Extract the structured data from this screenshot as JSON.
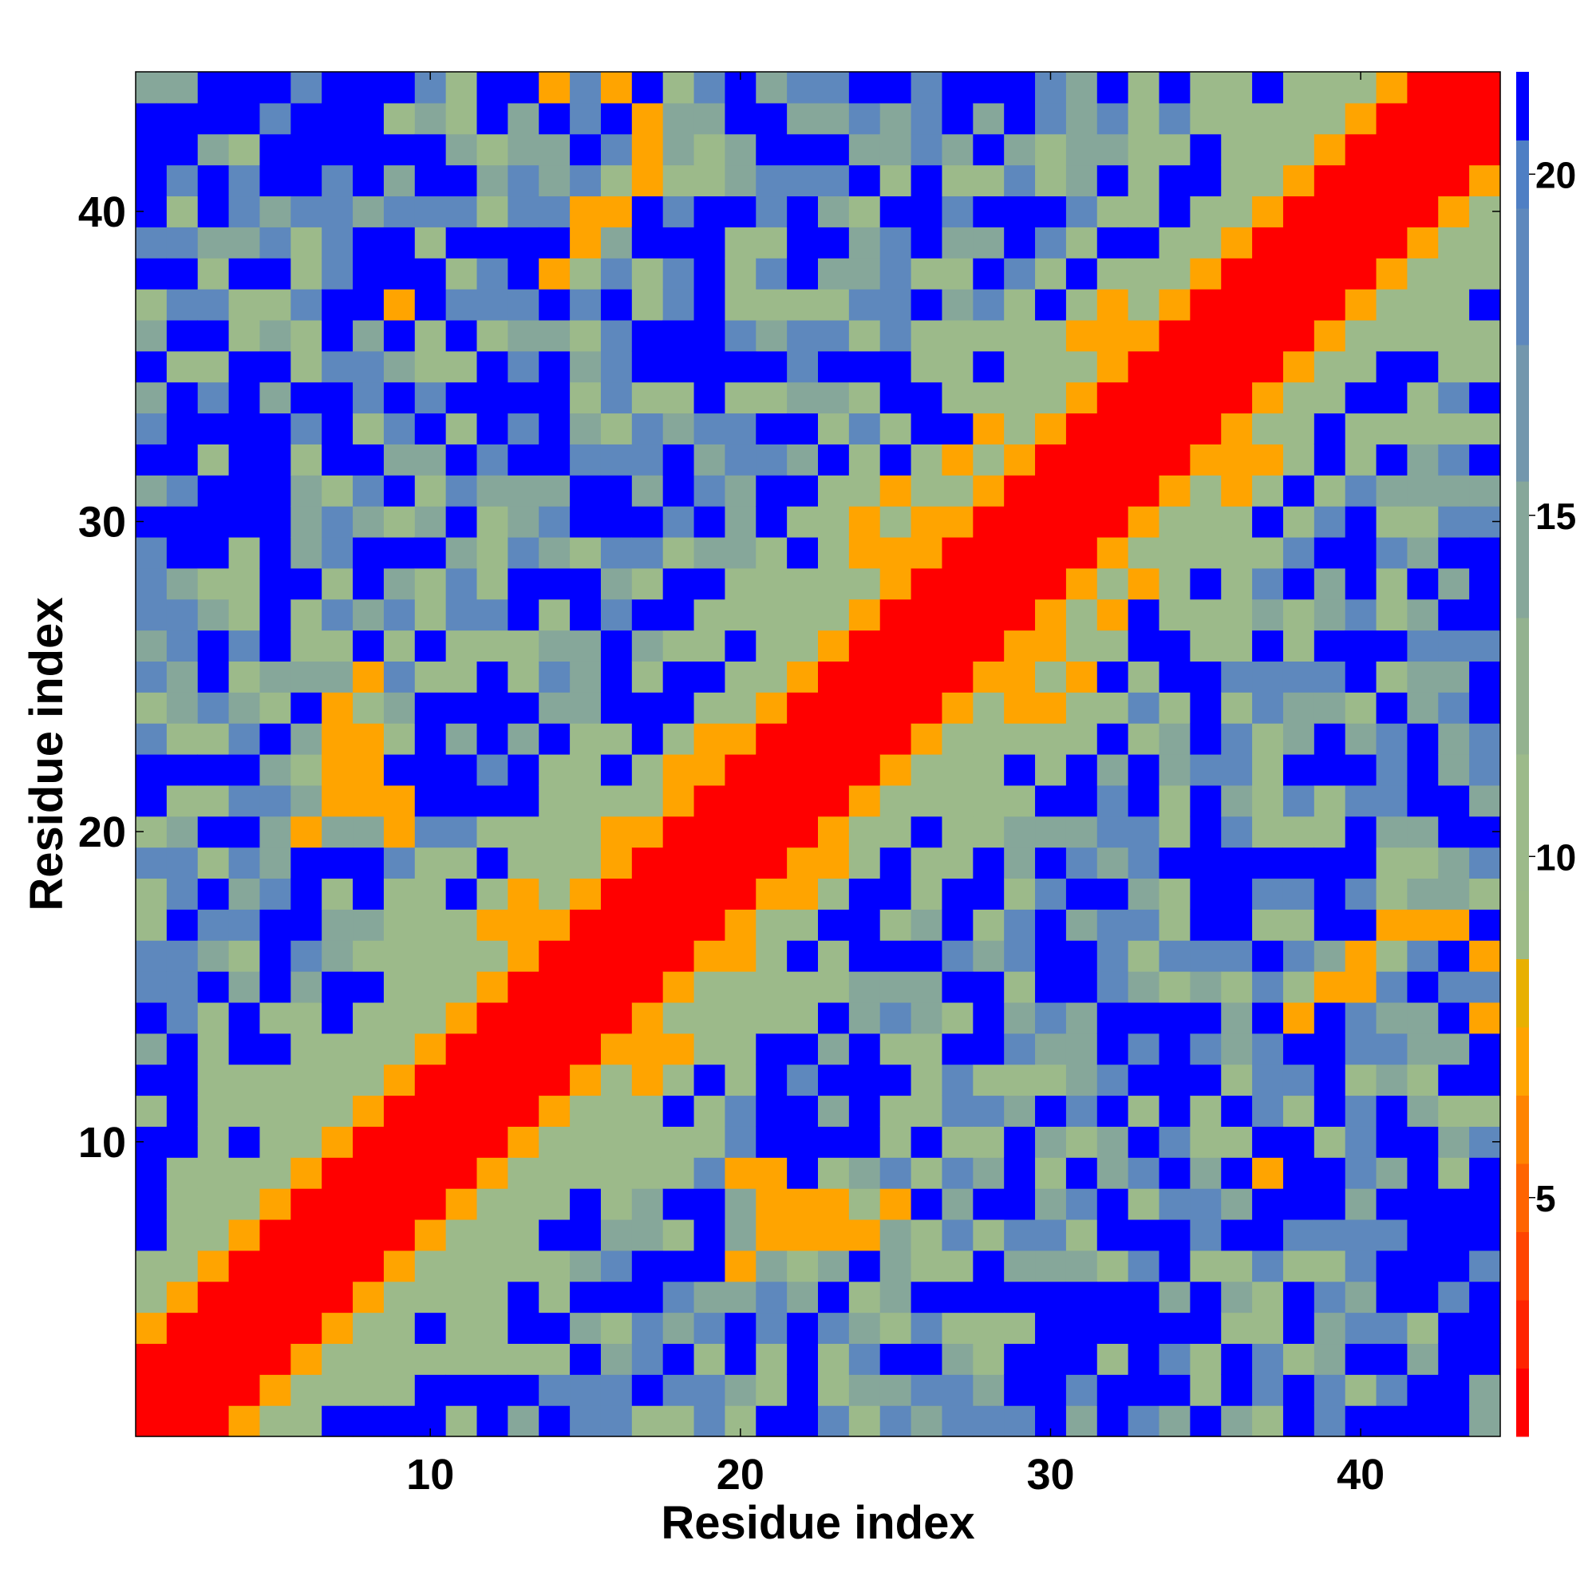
{
  "chart_data": {
    "type": "heatmap",
    "title": "",
    "xlabel": "Residue index",
    "ylabel": "Residue index",
    "n": 44,
    "xlim": [
      0.5,
      44.5
    ],
    "ylim": [
      0.5,
      44.5
    ],
    "x_ticks": [
      10,
      20,
      30,
      40
    ],
    "y_ticks": [
      10,
      20,
      30,
      40
    ],
    "x_tick_labels": [
      "10",
      "20",
      "30",
      "40"
    ],
    "y_tick_labels": [
      "10",
      "20",
      "30",
      "40"
    ],
    "colorbar": {
      "range": [
        1.5,
        21.5
      ],
      "ticks": [
        5,
        10,
        15,
        20
      ],
      "tick_labels": [
        "5",
        "10",
        "15",
        "20"
      ],
      "levels": [
        {
          "from": 1.5,
          "to": 2.5,
          "color": "#ff0000"
        },
        {
          "from": 2.5,
          "to": 3.5,
          "color": "#ff2400"
        },
        {
          "from": 3.5,
          "to": 4.5,
          "color": "#ff4400"
        },
        {
          "from": 4.5,
          "to": 5.5,
          "color": "#ff6400"
        },
        {
          "from": 5.5,
          "to": 6.5,
          "color": "#ff8400"
        },
        {
          "from": 6.5,
          "to": 7.5,
          "color": "#ffa400"
        },
        {
          "from": 7.5,
          "to": 8.5,
          "color": "#e8b000"
        },
        {
          "from": 8.5,
          "to": 9.5,
          "color": "#9dbb87"
        },
        {
          "from": 9.5,
          "to": 11.5,
          "color": "#9cba8a"
        },
        {
          "from": 11.5,
          "to": 13.5,
          "color": "#93b28f"
        },
        {
          "from": 13.5,
          "to": 15.5,
          "color": "#86a79a"
        },
        {
          "from": 15.5,
          "to": 17.5,
          "color": "#7397ad"
        },
        {
          "from": 17.5,
          "to": 19.5,
          "color": "#5e88bd"
        },
        {
          "from": 19.5,
          "to": 20.5,
          "color": "#4f7fc4"
        },
        {
          "from": 20.5,
          "to": 21.5,
          "color": "#0000ff"
        }
      ]
    },
    "value_note_unused": "",
    "band": {
      "contact_value": 2,
      "near_value": 7,
      "far_value": 21
    },
    "contact_pairs": [
      [
        1,
        2
      ],
      [
        1,
        3
      ],
      [
        2,
        3
      ],
      [
        2,
        4
      ],
      [
        3,
        4
      ],
      [
        3,
        5
      ],
      [
        4,
        5
      ],
      [
        4,
        6
      ],
      [
        5,
        6
      ],
      [
        5,
        7
      ],
      [
        6,
        7
      ],
      [
        6,
        8
      ],
      [
        7,
        8
      ],
      [
        7,
        9
      ],
      [
        8,
        9
      ],
      [
        8,
        10
      ],
      [
        9,
        10
      ],
      [
        9,
        11
      ],
      [
        10,
        11
      ],
      [
        10,
        12
      ],
      [
        11,
        12
      ],
      [
        11,
        13
      ],
      [
        12,
        13
      ],
      [
        12,
        14
      ],
      [
        13,
        14
      ],
      [
        13,
        15
      ],
      [
        14,
        15
      ],
      [
        14,
        16
      ],
      [
        15,
        16
      ],
      [
        15,
        17
      ],
      [
        16,
        17
      ],
      [
        16,
        18
      ],
      [
        17,
        18
      ],
      [
        17,
        19
      ],
      [
        18,
        19
      ],
      [
        18,
        20
      ],
      [
        19,
        20
      ],
      [
        19,
        21
      ],
      [
        20,
        21
      ],
      [
        20,
        22
      ],
      [
        21,
        22
      ],
      [
        21,
        23
      ],
      [
        22,
        23
      ],
      [
        22,
        24
      ],
      [
        23,
        24
      ],
      [
        23,
        25
      ],
      [
        24,
        25
      ],
      [
        24,
        26
      ],
      [
        25,
        26
      ],
      [
        25,
        27
      ],
      [
        26,
        27
      ],
      [
        26,
        28
      ],
      [
        27,
        28
      ],
      [
        27,
        29
      ],
      [
        28,
        29
      ],
      [
        28,
        30
      ],
      [
        29,
        30
      ],
      [
        29,
        31
      ],
      [
        30,
        31
      ],
      [
        30,
        32
      ],
      [
        31,
        32
      ],
      [
        31,
        33
      ],
      [
        32,
        33
      ],
      [
        32,
        34
      ],
      [
        33,
        34
      ],
      [
        33,
        35
      ],
      [
        34,
        35
      ],
      [
        34,
        36
      ],
      [
        35,
        36
      ],
      [
        35,
        37
      ],
      [
        36,
        37
      ],
      [
        36,
        38
      ],
      [
        37,
        38
      ],
      [
        37,
        39
      ],
      [
        38,
        39
      ],
      [
        38,
        40
      ],
      [
        39,
        40
      ],
      [
        39,
        41
      ],
      [
        40,
        41
      ],
      [
        40,
        42
      ],
      [
        41,
        42
      ],
      [
        41,
        43
      ],
      [
        42,
        43
      ],
      [
        42,
        44
      ],
      [
        43,
        44
      ]
    ],
    "near_pairs": [
      [
        1,
        4
      ],
      [
        2,
        5
      ],
      [
        3,
        6
      ],
      [
        4,
        7
      ],
      [
        5,
        8
      ],
      [
        6,
        9
      ],
      [
        7,
        10
      ],
      [
        8,
        11
      ],
      [
        9,
        12
      ],
      [
        10,
        13
      ],
      [
        11,
        14
      ],
      [
        12,
        15
      ],
      [
        13,
        16
      ],
      [
        14,
        17
      ],
      [
        15,
        18
      ],
      [
        16,
        19
      ],
      [
        17,
        20
      ],
      [
        18,
        21
      ],
      [
        19,
        22
      ],
      [
        20,
        23
      ],
      [
        21,
        24
      ],
      [
        22,
        25
      ],
      [
        23,
        26
      ],
      [
        24,
        27
      ],
      [
        25,
        28
      ],
      [
        26,
        29
      ],
      [
        27,
        30
      ],
      [
        28,
        31
      ],
      [
        29,
        32
      ],
      [
        30,
        33
      ],
      [
        31,
        34
      ],
      [
        32,
        35
      ],
      [
        33,
        36
      ],
      [
        34,
        37
      ],
      [
        35,
        38
      ],
      [
        36,
        39
      ],
      [
        37,
        40
      ],
      [
        38,
        41
      ],
      [
        39,
        42
      ],
      [
        40,
        43
      ],
      [
        41,
        44
      ],
      [
        7,
        22
      ],
      [
        8,
        23
      ],
      [
        8,
        21
      ],
      [
        9,
        20
      ],
      [
        7,
        21
      ],
      [
        6,
        20
      ],
      [
        12,
        17
      ],
      [
        13,
        17
      ],
      [
        14,
        17
      ],
      [
        13,
        18
      ],
      [
        16,
        20
      ],
      [
        18,
        22
      ],
      [
        19,
        23
      ],
      [
        24,
        29
      ],
      [
        24,
        30
      ],
      [
        25,
        29
      ],
      [
        25,
        31
      ],
      [
        26,
        30
      ],
      [
        27,
        32
      ],
      [
        28,
        33
      ],
      [
        31,
        36
      ],
      [
        32,
        36
      ],
      [
        33,
        36
      ],
      [
        32,
        37
      ],
      [
        38,
        14
      ],
      [
        39,
        15
      ],
      [
        40,
        15
      ],
      [
        40,
        16
      ],
      [
        41,
        17
      ],
      [
        42,
        17
      ],
      [
        43,
        17
      ],
      [
        44,
        16
      ],
      [
        44,
        14
      ],
      [
        37,
        9
      ],
      [
        23,
        8
      ],
      [
        22,
        8
      ],
      [
        21,
        9
      ],
      [
        23,
        7
      ],
      [
        24,
        7
      ],
      [
        25,
        8
      ]
    ],
    "mid_pairs": [
      [
        1,
        5
      ],
      [
        2,
        6
      ],
      [
        3,
        7
      ],
      [
        4,
        8
      ],
      [
        5,
        9
      ],
      [
        6,
        10
      ],
      [
        7,
        11
      ],
      [
        8,
        12
      ],
      [
        9,
        13
      ],
      [
        10,
        14
      ],
      [
        11,
        15
      ],
      [
        12,
        16
      ],
      [
        13,
        17
      ],
      [
        14,
        18
      ],
      [
        15,
        19
      ],
      [
        16,
        20
      ],
      [
        17,
        21
      ],
      [
        18,
        22
      ],
      [
        19,
        23
      ],
      [
        20,
        24
      ],
      [
        21,
        25
      ],
      [
        22,
        26
      ],
      [
        23,
        27
      ],
      [
        24,
        28
      ],
      [
        25,
        29
      ],
      [
        26,
        30
      ],
      [
        27,
        31
      ],
      [
        28,
        32
      ],
      [
        29,
        33
      ],
      [
        30,
        34
      ],
      [
        31,
        35
      ],
      [
        32,
        36
      ],
      [
        33,
        37
      ],
      [
        34,
        38
      ],
      [
        35,
        39
      ],
      [
        36,
        40
      ],
      [
        37,
        41
      ],
      [
        38,
        42
      ],
      [
        39,
        43
      ],
      [
        40,
        44
      ],
      [
        1,
        6
      ],
      [
        2,
        7
      ],
      [
        3,
        8
      ],
      [
        4,
        9
      ],
      [
        5,
        10
      ],
      [
        6,
        11
      ],
      [
        7,
        12
      ],
      [
        8,
        13
      ],
      [
        9,
        14
      ],
      [
        10,
        15
      ],
      [
        11,
        16
      ],
      [
        12,
        17
      ],
      [
        13,
        18
      ],
      [
        14,
        19
      ],
      [
        15,
        20
      ],
      [
        16,
        21
      ],
      [
        17,
        22
      ],
      [
        18,
        23
      ],
      [
        19,
        24
      ],
      [
        20,
        25
      ],
      [
        21,
        26
      ],
      [
        22,
        27
      ],
      [
        23,
        28
      ],
      [
        24,
        29
      ],
      [
        25,
        30
      ],
      [
        26,
        31
      ],
      [
        27,
        32
      ],
      [
        28,
        33
      ],
      [
        29,
        34
      ],
      [
        30,
        35
      ],
      [
        31,
        36
      ],
      [
        32,
        37
      ],
      [
        33,
        38
      ],
      [
        34,
        39
      ],
      [
        35,
        40
      ],
      [
        36,
        41
      ],
      [
        37,
        42
      ],
      [
        38,
        43
      ],
      [
        39,
        44
      ]
    ]
  }
}
